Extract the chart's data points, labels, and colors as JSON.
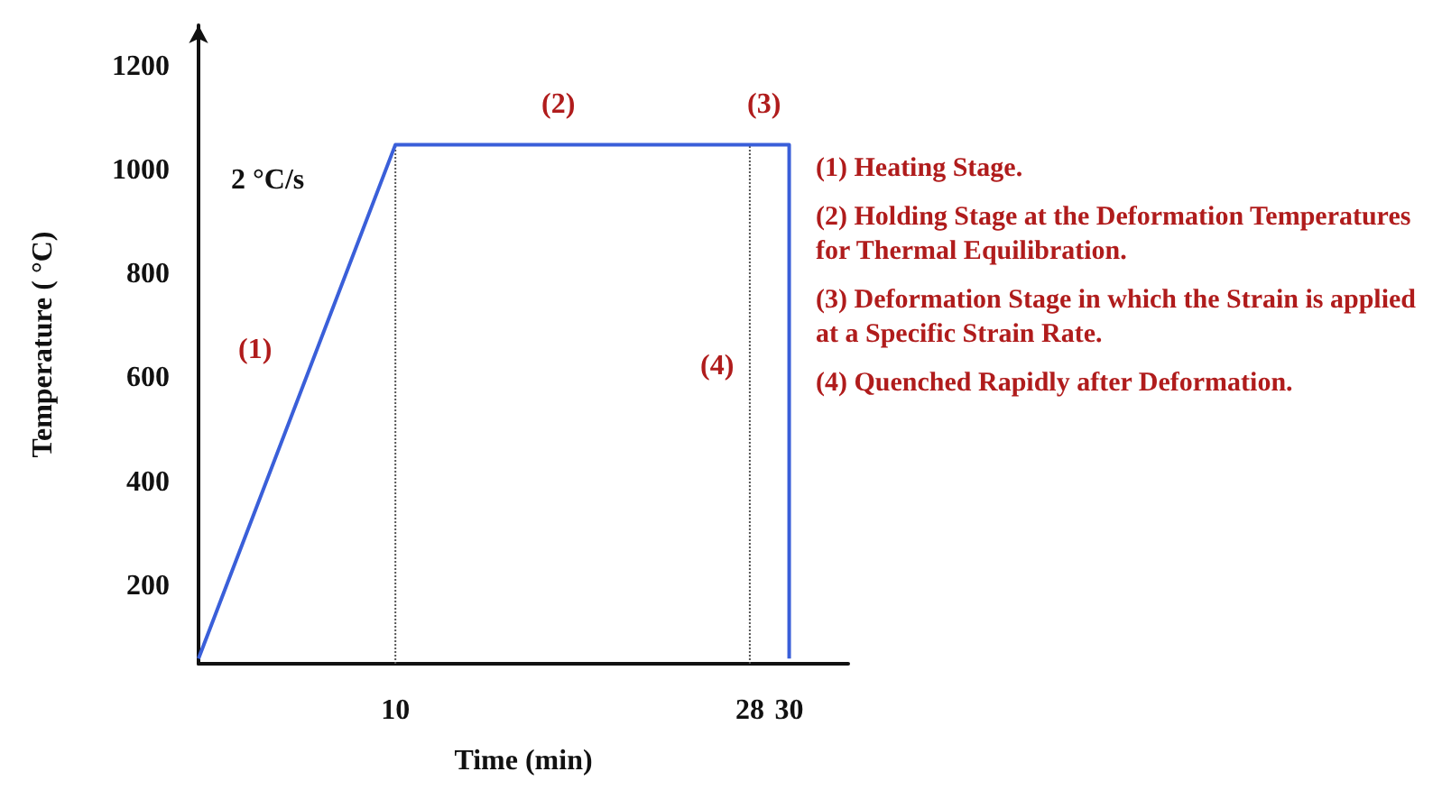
{
  "chart_data": {
    "type": "line",
    "xlabel": "Time (min)",
    "ylabel": "Temperature ( °C)",
    "x": [
      0,
      10,
      28,
      30,
      30
    ],
    "values": [
      60,
      1050,
      1050,
      1050,
      60
    ],
    "color": "#3a5fd9",
    "xlim": [
      0,
      33
    ],
    "xticks": [
      10,
      28,
      30
    ],
    "ylim": [
      50,
      1280
    ],
    "yticks": [
      200,
      400,
      600,
      800,
      1000,
      1200
    ],
    "grid": false,
    "marker": "none",
    "line_style": "solid",
    "ref_lines": [
      {
        "axis": "x",
        "value": 10,
        "color": "#555555",
        "line_style": "dotted"
      },
      {
        "axis": "x",
        "value": 28,
        "color": "#555555",
        "line_style": "dotted"
      }
    ],
    "annotations": [
      "(1)",
      "2 °C/s",
      "(2)",
      "(3)",
      "(4)",
      "(1) Heating Stage.",
      "(2) Holding Stage at the Deformation Temperatures for Thermal Equilibration.",
      "(3) Deformation Stage in which the Strain is applied at a Specific Strain Rate.",
      "(4) Quenched Rapidly after Deformation."
    ]
  }
}
